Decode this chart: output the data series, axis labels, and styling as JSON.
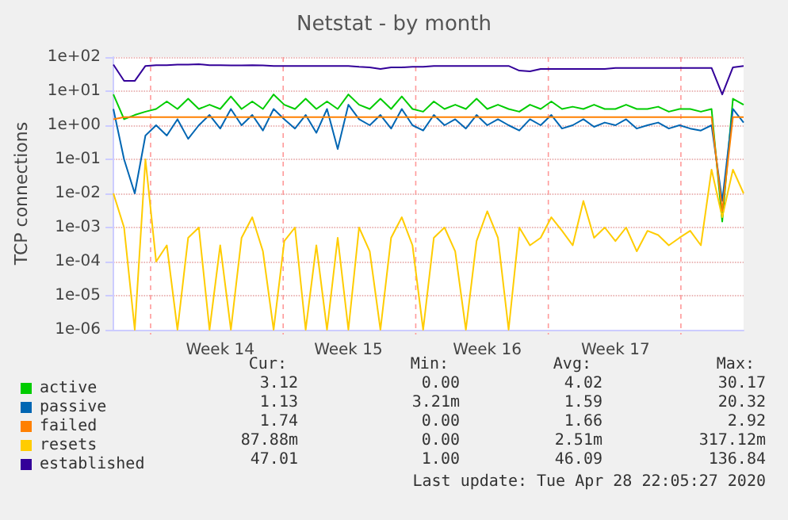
{
  "chart_data": {
    "type": "line",
    "title": "Netstat - by month",
    "ylabel": "TCP connections",
    "categories": [
      null,
      null,
      null,
      null,
      null,
      null,
      null,
      null,
      null,
      null,
      "Week 14",
      null,
      null,
      null,
      null,
      null,
      null,
      null,
      null,
      null,
      null,
      null,
      "Week 15",
      null,
      null,
      null,
      null,
      null,
      null,
      null,
      null,
      null,
      null,
      null,
      null,
      "Week 16",
      null,
      null,
      null,
      null,
      null,
      null,
      null,
      null,
      null,
      null,
      null,
      "Week 17",
      null,
      null,
      null,
      null,
      null,
      null,
      null,
      null,
      null,
      null,
      null,
      null
    ],
    "ylim": [
      1e-06,
      100
    ],
    "log": true,
    "yticks": [
      {
        "value": 1e-06,
        "label": "1e-06"
      },
      {
        "value": 1e-05,
        "label": "1e-05"
      },
      {
        "value": 0.0001,
        "label": "1e-04"
      },
      {
        "value": 0.001,
        "label": "1e-03"
      },
      {
        "value": 0.01,
        "label": "1e-02"
      },
      {
        "value": 0.1,
        "label": "1e-01"
      },
      {
        "value": 1,
        "label": "1e+00"
      },
      {
        "value": 10,
        "label": "1e+01"
      },
      {
        "value": 100,
        "label": "1e+02"
      }
    ],
    "grid": true,
    "legend": "bottom",
    "series": [
      {
        "name": "active",
        "color": "#00cc00",
        "values": [
          8,
          1.5,
          2,
          2.5,
          3,
          5,
          3,
          6,
          3,
          4,
          3,
          7,
          3,
          5,
          3,
          8,
          4,
          3,
          6,
          3,
          5,
          3,
          8,
          4,
          3,
          6,
          3,
          7,
          3,
          2.5,
          5,
          3,
          4,
          3,
          6,
          3,
          4,
          3,
          2.5,
          4,
          3,
          5,
          3,
          3.5,
          3,
          4,
          3,
          3,
          4,
          3,
          3,
          3.5,
          2.5,
          3,
          3,
          2.5,
          3,
          0.0015,
          6,
          4
        ]
      },
      {
        "name": "passive",
        "color": "#0066b3",
        "values": [
          3,
          0.1,
          0.01,
          0.5,
          1,
          0.5,
          1.5,
          0.4,
          1,
          2,
          0.8,
          3,
          1,
          2,
          0.7,
          3,
          1.5,
          0.8,
          2,
          0.6,
          3,
          0.2,
          4,
          1.5,
          1,
          2,
          0.8,
          3,
          1,
          0.7,
          2,
          1,
          1.5,
          0.8,
          2,
          1,
          1.5,
          1,
          0.7,
          1.5,
          1,
          2,
          0.8,
          1,
          1.5,
          0.9,
          1.2,
          1,
          1.5,
          0.8,
          1,
          1.2,
          0.8,
          1,
          0.8,
          0.7,
          1,
          0.006,
          3,
          1.2
        ]
      },
      {
        "name": "failed",
        "color": "#ff8000",
        "values": [
          1.5,
          1.74,
          1.74,
          1.74,
          1.74,
          1.74,
          1.74,
          1.74,
          1.74,
          1.74,
          1.74,
          1.74,
          1.74,
          1.74,
          1.74,
          1.74,
          1.74,
          1.74,
          1.74,
          1.74,
          1.74,
          1.74,
          1.74,
          1.74,
          1.74,
          1.74,
          1.74,
          1.74,
          1.74,
          1.74,
          1.74,
          1.74,
          1.74,
          1.74,
          1.74,
          1.74,
          1.74,
          1.74,
          1.74,
          1.74,
          1.74,
          1.74,
          1.74,
          1.74,
          1.74,
          1.74,
          1.74,
          1.74,
          1.74,
          1.74,
          1.74,
          1.74,
          1.74,
          1.74,
          1.74,
          1.74,
          1.74,
          0.003,
          1.74,
          1.74
        ]
      },
      {
        "name": "resets",
        "color": "#ffcc00",
        "values": [
          0.01,
          0.001,
          1e-06,
          0.1,
          0.0001,
          0.0003,
          1e-06,
          0.0005,
          0.001,
          1e-06,
          0.0003,
          1e-06,
          0.0005,
          0.002,
          0.0002,
          1e-06,
          0.0004,
          0.001,
          1e-06,
          0.0003,
          1e-06,
          0.0005,
          1e-06,
          0.001,
          0.0002,
          1e-06,
          0.0005,
          0.002,
          0.0003,
          1e-06,
          0.0005,
          0.001,
          0.0002,
          1e-06,
          0.0004,
          0.003,
          0.0005,
          1e-06,
          0.001,
          0.0003,
          0.0005,
          0.002,
          0.0008,
          0.0003,
          0.006,
          0.0005,
          0.001,
          0.0004,
          0.001,
          0.0002,
          0.0008,
          0.0006,
          0.0003,
          0.0005,
          0.0008,
          0.0003,
          0.05,
          0.002,
          0.05,
          0.01
        ]
      },
      {
        "name": "established",
        "color": "#330099",
        "values": [
          60,
          20,
          20,
          55,
          58,
          58,
          60,
          60,
          62,
          58,
          58,
          57,
          57,
          58,
          57,
          55,
          55,
          55,
          55,
          55,
          55,
          55,
          55,
          52,
          50,
          45,
          50,
          50,
          52,
          52,
          55,
          55,
          55,
          55,
          55,
          55,
          55,
          55,
          40,
          38,
          45,
          45,
          45,
          45,
          45,
          45,
          45,
          48,
          48,
          48,
          48,
          48,
          48,
          48,
          48,
          48,
          48,
          8,
          50,
          55
        ]
      }
    ],
    "annotations": [
      "Cur:",
      "Min:",
      "Avg:",
      "Max:",
      "3.12",
      "0.00",
      "4.02",
      "30.17",
      "1.13",
      "3.21m",
      "1.59",
      "20.32",
      "1.74",
      "0.00",
      "1.66",
      "2.92",
      "87.88m",
      "0.00",
      "2.51m",
      "317.12m",
      "47.01",
      "1.00",
      "46.09",
      "136.84",
      "Last update: Tue Apr 28 22:05:27 2020"
    ]
  }
}
